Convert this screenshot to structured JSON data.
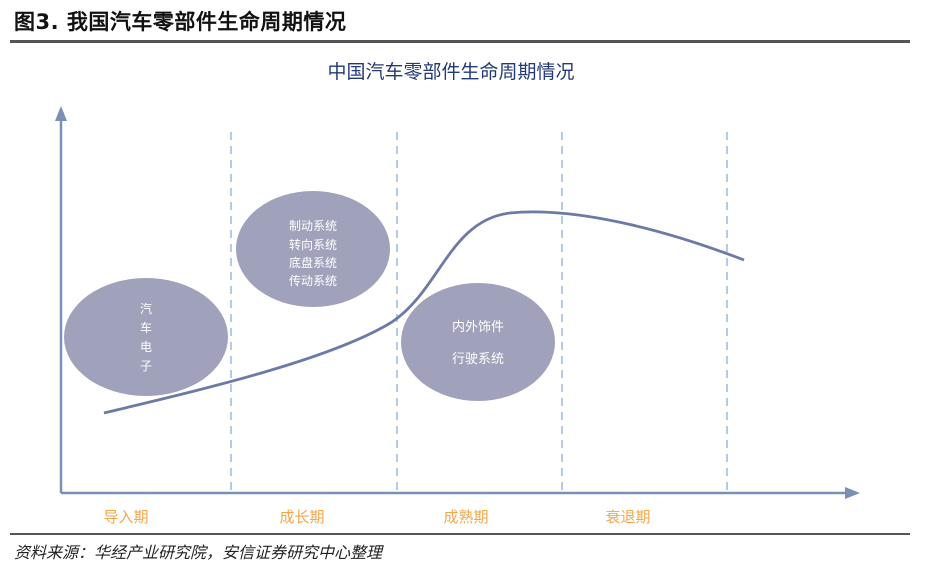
{
  "caption": "图3. 我国汽车零部件生命周期情况",
  "title": "中国汽车零部件生命周期情况",
  "source": "资料来源：华经产业研究院，安信证券研究中心整理",
  "stages": [
    "导入期",
    "成长期",
    "成熟期",
    "衰退期"
  ],
  "groups": [
    {
      "lines": [
        "汽",
        "车",
        "电",
        "子"
      ]
    },
    {
      "lines": [
        "制动系统",
        "转向系统",
        "底盘系统",
        "传动系统"
      ]
    },
    {
      "lines": [
        "内外饰件",
        "行驶系统"
      ]
    }
  ],
  "colors": {
    "axis": "#7a8fb3",
    "curve": "#6d7aa6",
    "ellipse": "#9fa2ba",
    "divider": "#a9c6e6",
    "stage_label": "#f3a64a",
    "title": "#233a78",
    "ellipse_text": "#ffffff"
  }
}
